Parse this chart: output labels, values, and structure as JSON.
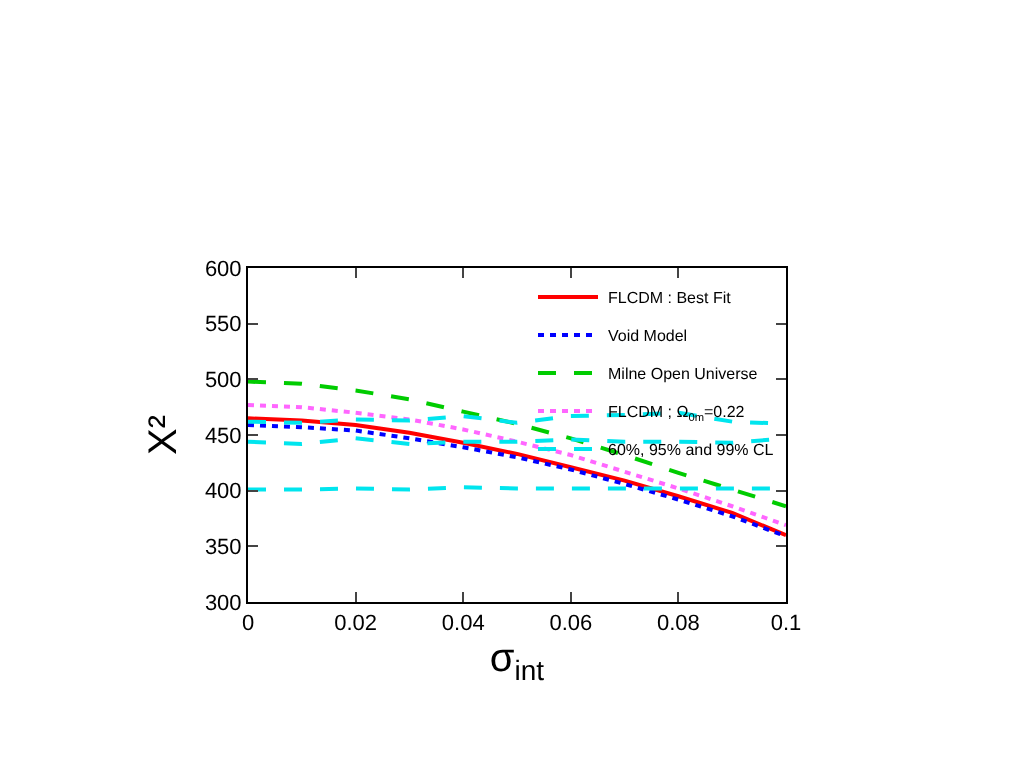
{
  "chart_data": {
    "type": "line",
    "xlabel": "σ$_{int}$",
    "ylabel": "Χ²",
    "x": [
      0,
      0.01,
      0.02,
      0.03,
      0.04,
      0.05,
      0.06,
      0.07,
      0.08,
      0.09,
      0.1
    ],
    "xlim": [
      0,
      0.1
    ],
    "xticks": [
      0,
      0.02,
      0.04,
      0.06,
      0.08,
      0.1
    ],
    "ylim": [
      300,
      600
    ],
    "yticks": [
      300,
      350,
      400,
      450,
      500,
      550,
      600
    ],
    "grid": false,
    "legend": "top right",
    "marker": "none",
    "series": [
      {
        "name": "FLCDM : Best Fit",
        "color": "#ff0000",
        "line_style": "solid",
        "values": [
          465,
          463,
          459,
          452,
          443,
          433,
          421,
          409,
          395,
          380,
          360
        ]
      },
      {
        "name": "Void Model",
        "color": "#0000ff",
        "line_style": "dotted",
        "values": [
          459,
          457,
          454,
          447,
          439,
          430,
          419,
          406,
          392,
          377,
          359
        ]
      },
      {
        "name": "Milne Open Universe",
        "color": "#00cc00",
        "line_style": "dashed",
        "values": [
          498,
          496,
          490,
          482,
          471,
          460,
          447,
          432,
          416,
          401,
          386
        ]
      },
      {
        "name": "FLCDM ; Ω$_{0m}$=0.22",
        "color": "#ff66ff",
        "line_style": "dotted",
        "values": [
          477,
          475,
          470,
          464,
          455,
          444,
          432,
          417,
          402,
          386,
          369
        ]
      },
      {
        "name": "60%, 95% and 99% CL",
        "color": "#00e5ee",
        "line_style": "dashed",
        "values": [
          462,
          461,
          464,
          463,
          467,
          461,
          467,
          468,
          470,
          462,
          460
        ]
      },
      {
        "color": "#00e5ee",
        "line_style": "dashed",
        "values": [
          444,
          442,
          447,
          442,
          444,
          444,
          446,
          444,
          444,
          443,
          447
        ]
      },
      {
        "color": "#00e5ee",
        "line_style": "dashed",
        "values": [
          401,
          401,
          402,
          401,
          403,
          402,
          402,
          402,
          402,
          402,
          402
        ]
      }
    ]
  }
}
